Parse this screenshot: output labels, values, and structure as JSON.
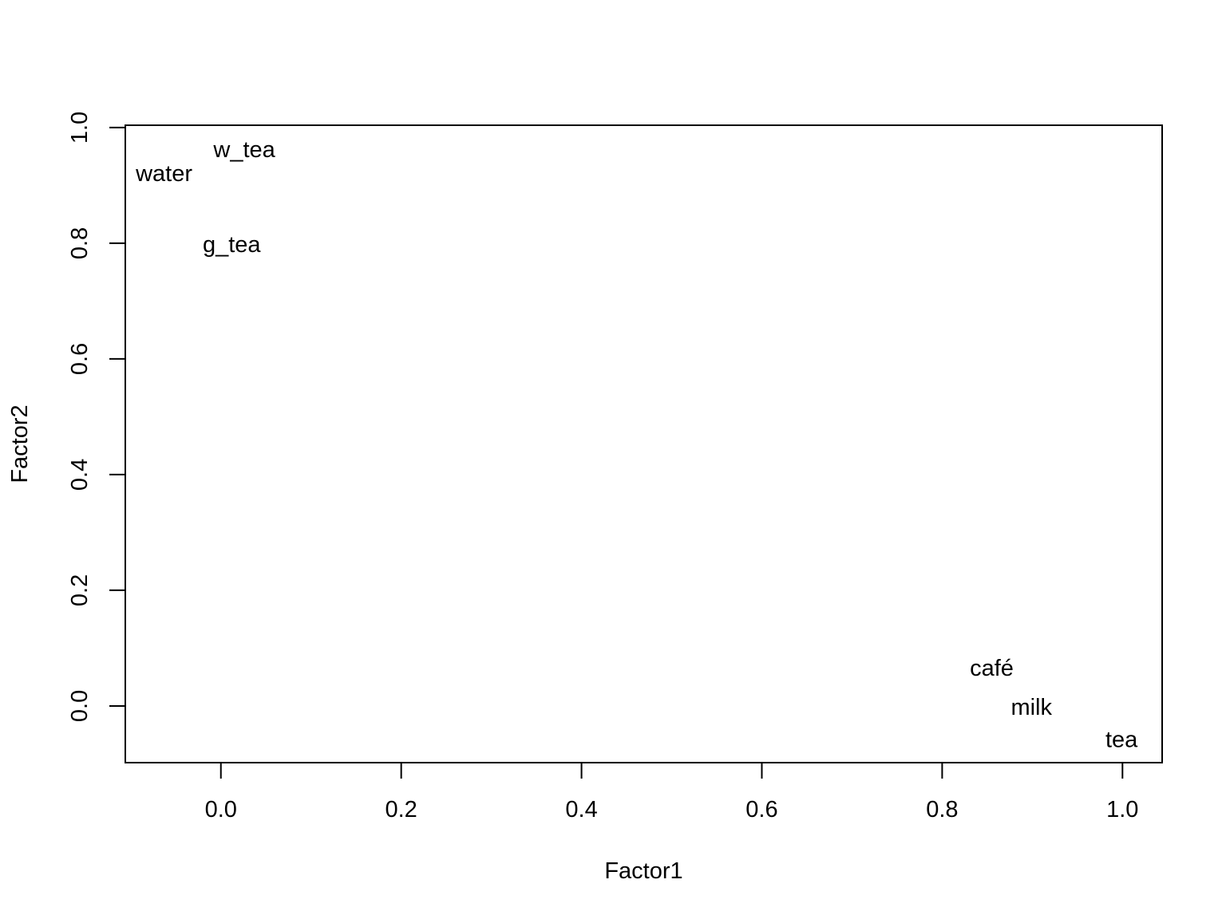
{
  "figure": {
    "background": "#ffffff",
    "foreground": "#000000",
    "title": ""
  },
  "chart_data": {
    "type": "scatter",
    "marker": "text-labels",
    "title": "",
    "xlabel": "Factor1",
    "ylabel": "Factor2",
    "xlim": [
      -0.106,
      1.044
    ],
    "ylim": [
      -0.098,
      1.004
    ],
    "grid": false,
    "legend": null,
    "x_ticks": [
      {
        "value": 0.0,
        "label": "0.0"
      },
      {
        "value": 0.2,
        "label": "0.2"
      },
      {
        "value": 0.4,
        "label": "0.4"
      },
      {
        "value": 0.6,
        "label": "0.6"
      },
      {
        "value": 0.8,
        "label": "0.8"
      },
      {
        "value": 1.0,
        "label": "1.0"
      }
    ],
    "y_ticks": [
      {
        "value": 0.0,
        "label": "0.0"
      },
      {
        "value": 0.2,
        "label": "0.2"
      },
      {
        "value": 0.4,
        "label": "0.4"
      },
      {
        "value": 0.6,
        "label": "0.6"
      },
      {
        "value": 0.8,
        "label": "0.8"
      },
      {
        "value": 1.0,
        "label": "1.0"
      }
    ],
    "points": [
      {
        "label": "water",
        "x": -0.063,
        "y": 0.92
      },
      {
        "label": "w_tea",
        "x": 0.026,
        "y": 0.961
      },
      {
        "label": "g_tea",
        "x": 0.012,
        "y": 0.797
      },
      {
        "label": "café",
        "x": 0.855,
        "y": 0.065
      },
      {
        "label": "milk",
        "x": 0.899,
        "y": -0.003
      },
      {
        "label": "tea",
        "x": 0.999,
        "y": -0.059
      }
    ]
  }
}
